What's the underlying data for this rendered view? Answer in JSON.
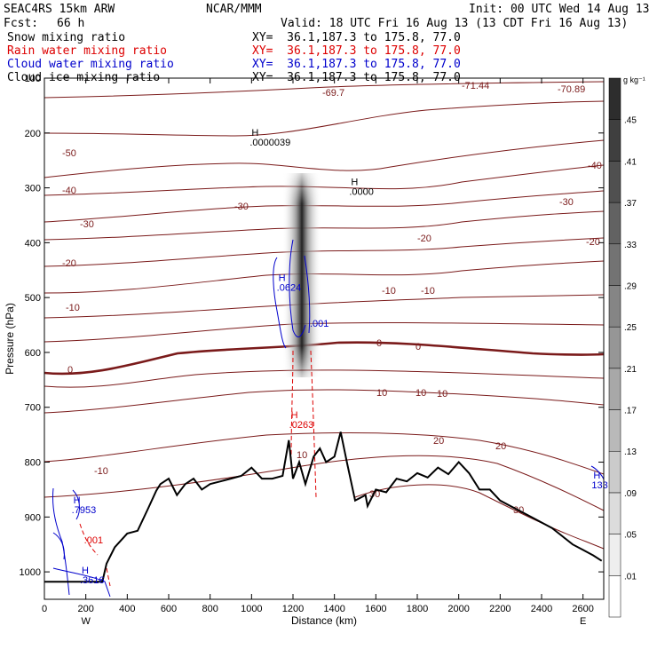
{
  "header": {
    "model": "SEAC4RS 15km ARW",
    "org": "NCAR/MMM",
    "init": "Init: 00 UTC Wed 14 Aug 13",
    "fcst_label": "Fcst:",
    "fcst_value": "66 h",
    "valid": "Valid: 18 UTC Fri 16 Aug 13 (13 CDT Fri 16 Aug 13)"
  },
  "legend": [
    {
      "name": "Snow mixing ratio",
      "xy": "XY=  36.1,187.3 to 175.8, 77.0",
      "color": "#000000"
    },
    {
      "name": "Rain water mixing ratio",
      "xy": "XY=  36.1,187.3 to 175.8, 77.0",
      "color": "#dd0000"
    },
    {
      "name": "Cloud water mixing ratio",
      "xy": "XY=  36.1,187.3 to 175.8, 77.0",
      "color": "#0000cc"
    },
    {
      "name": "Cloud ice mixing ratio",
      "xy": "XY=  36.1,187.3 to 175.8, 77.0",
      "color": "#000000"
    }
  ],
  "colorbar": {
    "unit": "g kg⁻¹",
    "levels": [
      ".01",
      ".05",
      ".09",
      ".13",
      ".17",
      ".21",
      ".25",
      ".29",
      ".33",
      ".37",
      ".41",
      ".45"
    ]
  },
  "chart_data": {
    "type": "contour-cross-section",
    "xlabel": "Distance (km)",
    "ylabel": "Pressure (hPa)",
    "xlim": [
      0,
      2700
    ],
    "ylim": [
      1050,
      100
    ],
    "x_ticks": [
      0,
      200,
      400,
      600,
      800,
      1000,
      1200,
      1400,
      1600,
      1800,
      2000,
      2200,
      2400,
      2600
    ],
    "y_ticks": [
      100,
      200,
      300,
      400,
      500,
      600,
      700,
      800,
      900,
      1000
    ],
    "x_ends": {
      "left": "W",
      "right": "E"
    },
    "terrain": {
      "x": [
        0,
        280,
        300,
        340,
        400,
        450,
        500,
        540,
        560,
        600,
        640,
        680,
        720,
        760,
        800,
        850,
        900,
        950,
        1000,
        1050,
        1100,
        1150,
        1180,
        1200,
        1230,
        1260,
        1300,
        1330,
        1360,
        1400,
        1430,
        1460,
        1500,
        1550,
        1560,
        1600,
        1650,
        1700,
        1750,
        1800,
        1850,
        1900,
        1950,
        2000,
        2050,
        2100,
        2150,
        2200,
        2250,
        2300,
        2350,
        2400,
        2450,
        2500,
        2550,
        2600,
        2650,
        2690
      ],
      "p": [
        1018,
        1018,
        985,
        955,
        930,
        925,
        885,
        852,
        840,
        830,
        860,
        840,
        830,
        850,
        840,
        835,
        830,
        825,
        810,
        830,
        830,
        825,
        760,
        830,
        800,
        840,
        790,
        775,
        800,
        790,
        745,
        800,
        870,
        860,
        880,
        850,
        855,
        830,
        835,
        820,
        828,
        810,
        822,
        800,
        820,
        850,
        850,
        870,
        880,
        890,
        900,
        910,
        920,
        935,
        950,
        960,
        970,
        980
      ]
    },
    "temperature_contours_C": [
      -70,
      -60,
      -50,
      -40,
      -30,
      -20,
      -10,
      0,
      10,
      20,
      30
    ],
    "temperature_labels": [
      "-69.7",
      "-71.44",
      "-70.89",
      "-50",
      "-40",
      "-40",
      "-30",
      "-30",
      "-30",
      "-20",
      "-20",
      "-20",
      "-10",
      "-10",
      "-10",
      "0",
      "0",
      "0",
      "10",
      "10",
      "20",
      "20",
      "30",
      "30",
      "10",
      "-10",
      "10"
    ],
    "annotations": [
      {
        "text": "H",
        "sub": ".0000039",
        "x": 1000,
        "p": 205,
        "color": "#000000"
      },
      {
        "text": "H",
        "sub": ".0000",
        "x": 1480,
        "p": 295,
        "color": "#000000"
      },
      {
        "text": "H",
        "sub": ".0624",
        "x": 1130,
        "p": 470,
        "color": "#0000cc"
      },
      {
        "text": "",
        "sub": ".001",
        "x": 1290,
        "p": 535,
        "color": "#0000cc"
      },
      {
        "text": "H",
        "sub": ".0263",
        "x": 1190,
        "p": 720,
        "color": "#dd0000"
      },
      {
        "text": "H",
        "sub": ".7953",
        "x": 140,
        "p": 875,
        "color": "#0000cc"
      },
      {
        "text": "",
        "sub": ".001",
        "x": 200,
        "p": 930,
        "color": "#dd0000"
      },
      {
        "text": "H",
        "sub": ".3616",
        "x": 180,
        "p": 1003,
        "color": "#0000cc"
      },
      {
        "text": "H",
        "sub": "133",
        "x": 2650,
        "p": 830,
        "color": "#0000cc"
      }
    ]
  }
}
